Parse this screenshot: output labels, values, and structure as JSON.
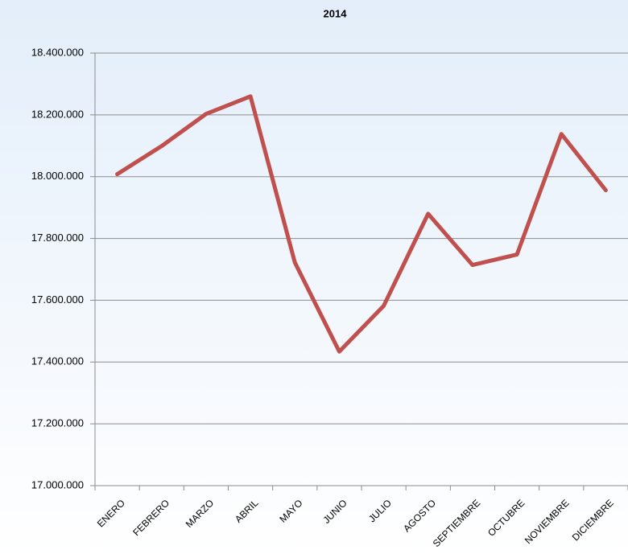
{
  "chart_data": {
    "type": "line",
    "title": "2014",
    "categories": [
      "ENERO",
      "FEBRERO",
      "MARZO",
      "ABRIL",
      "MAYO",
      "JUNIO",
      "JULIO",
      "AGOSTO",
      "SEPTIEMBRE",
      "OCTUBRE",
      "NOVIEMBRE",
      "DICIEMBRE"
    ],
    "series": [
      {
        "name": "2014",
        "color": "#c0504d",
        "values": [
          18008000,
          18099000,
          18203000,
          18260000,
          17722000,
          17434000,
          17582000,
          17880000,
          17714000,
          17748000,
          18138000,
          17956000
        ]
      }
    ],
    "ylim": [
      17000000,
      18400000
    ],
    "yticks": [
      {
        "value": 17000000,
        "label": "17.000.000"
      },
      {
        "value": 17200000,
        "label": "17.200.000"
      },
      {
        "value": 17400000,
        "label": "17.400.000"
      },
      {
        "value": 17600000,
        "label": "17.600.000"
      },
      {
        "value": 17800000,
        "label": "17.800.000"
      },
      {
        "value": 18000000,
        "label": "18.000.000"
      },
      {
        "value": 18200000,
        "label": "18.200.000"
      },
      {
        "value": 18400000,
        "label": "18.400.000"
      }
    ],
    "grid": true
  }
}
